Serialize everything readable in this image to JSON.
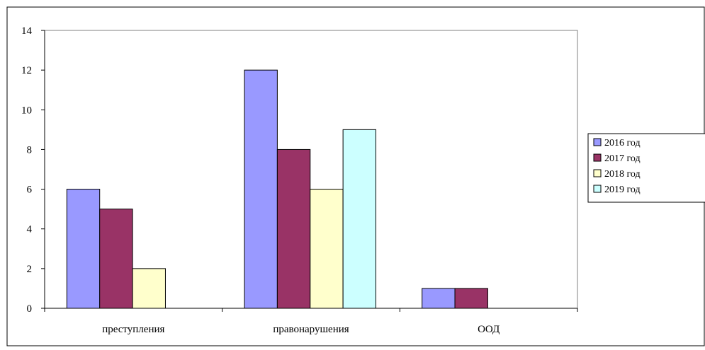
{
  "chart_data": {
    "type": "bar",
    "title": "",
    "xlabel": "",
    "ylabel": "",
    "categories": [
      "преступления",
      "правонарушения",
      "ООД"
    ],
    "series": [
      {
        "name": "2016 год",
        "color": "#9999FF",
        "values": [
          6,
          12,
          1
        ]
      },
      {
        "name": "2017 год",
        "color": "#993366",
        "values": [
          5,
          8,
          1
        ]
      },
      {
        "name": "2018 год",
        "color": "#FFFFCC",
        "values": [
          2,
          6,
          0
        ]
      },
      {
        "name": "2019 год",
        "color": "#CCFFFF",
        "values": [
          0,
          9,
          0
        ]
      }
    ],
    "ylim": [
      0,
      14
    ],
    "yticks": [
      "0",
      "2",
      "4",
      "6",
      "8",
      "10",
      "12",
      "14"
    ],
    "grid": false,
    "legend_position": "right",
    "bar_outline_color": "#000000"
  }
}
